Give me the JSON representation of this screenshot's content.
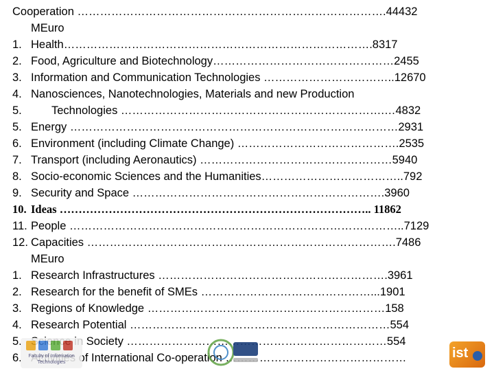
{
  "lines": [
    {
      "num": "",
      "text": "Cooperation ……………………………………………………………………….44432"
    },
    {
      "num": "",
      "text": "MEuro"
    },
    {
      "num": "1.",
      "text": "Health……………………………………………………………………….8317"
    },
    {
      "num": "2.",
      "text": "Food, Agriculture and Biotechnology…………………………………………2455"
    },
    {
      "num": "3.",
      "text": "Information and Communication Technologies ……………………………..12670"
    },
    {
      "num": "4.",
      "text": "Nanosciences, Nanotechnologies, Materials and new Production"
    },
    {
      "num": "5.",
      "text": "Technologies …………………………………………………………….…4832"
    },
    {
      "num": "5.",
      "text": "Energy ……………………………………………………………………………2931"
    },
    {
      "num": "6.",
      "text": "Environment (including Climate Change) …………………………………….2535"
    },
    {
      "num": "7.",
      "text": "Transport (including Aeronautics) ……………………………………………5940"
    },
    {
      "num": "8.",
      "text": "Socio-economic Sciences and the Humanities………………………………..792"
    },
    {
      "num": "9.",
      "text": "Security and Space ………………………………………………………….3960"
    },
    {
      "num": "10.",
      "text": "Ideas ……………………………………………………………………….. 11862"
    },
    {
      "num": "11.",
      "text": "People ……………………………………………………………………………..7129"
    },
    {
      "num": "12.",
      "text": "Capacities ……………………………………………………………………….7486"
    },
    {
      "num": "",
      "text": "MEuro"
    },
    {
      "num": "1.",
      "text": "Research Infrastructures …………………………………………………….3961"
    },
    {
      "num": "2.",
      "text": "Research for the benefit of SMEs ………………………………………...1901"
    },
    {
      "num": "3.",
      "text": "Regions of Knowledge ………………………………………………………158"
    },
    {
      "num": "4.",
      "text": "Research Potential ……………………………………………………………554"
    },
    {
      "num": "5.",
      "text": "Science in Society ……………………………………………………………554"
    },
    {
      "num": "6.",
      "text": "Activities of International Co-operation …………………………………………"
    }
  ],
  "logos": {
    "left_caption": "Faculty of Information Technologies",
    "right_text": "ist"
  }
}
